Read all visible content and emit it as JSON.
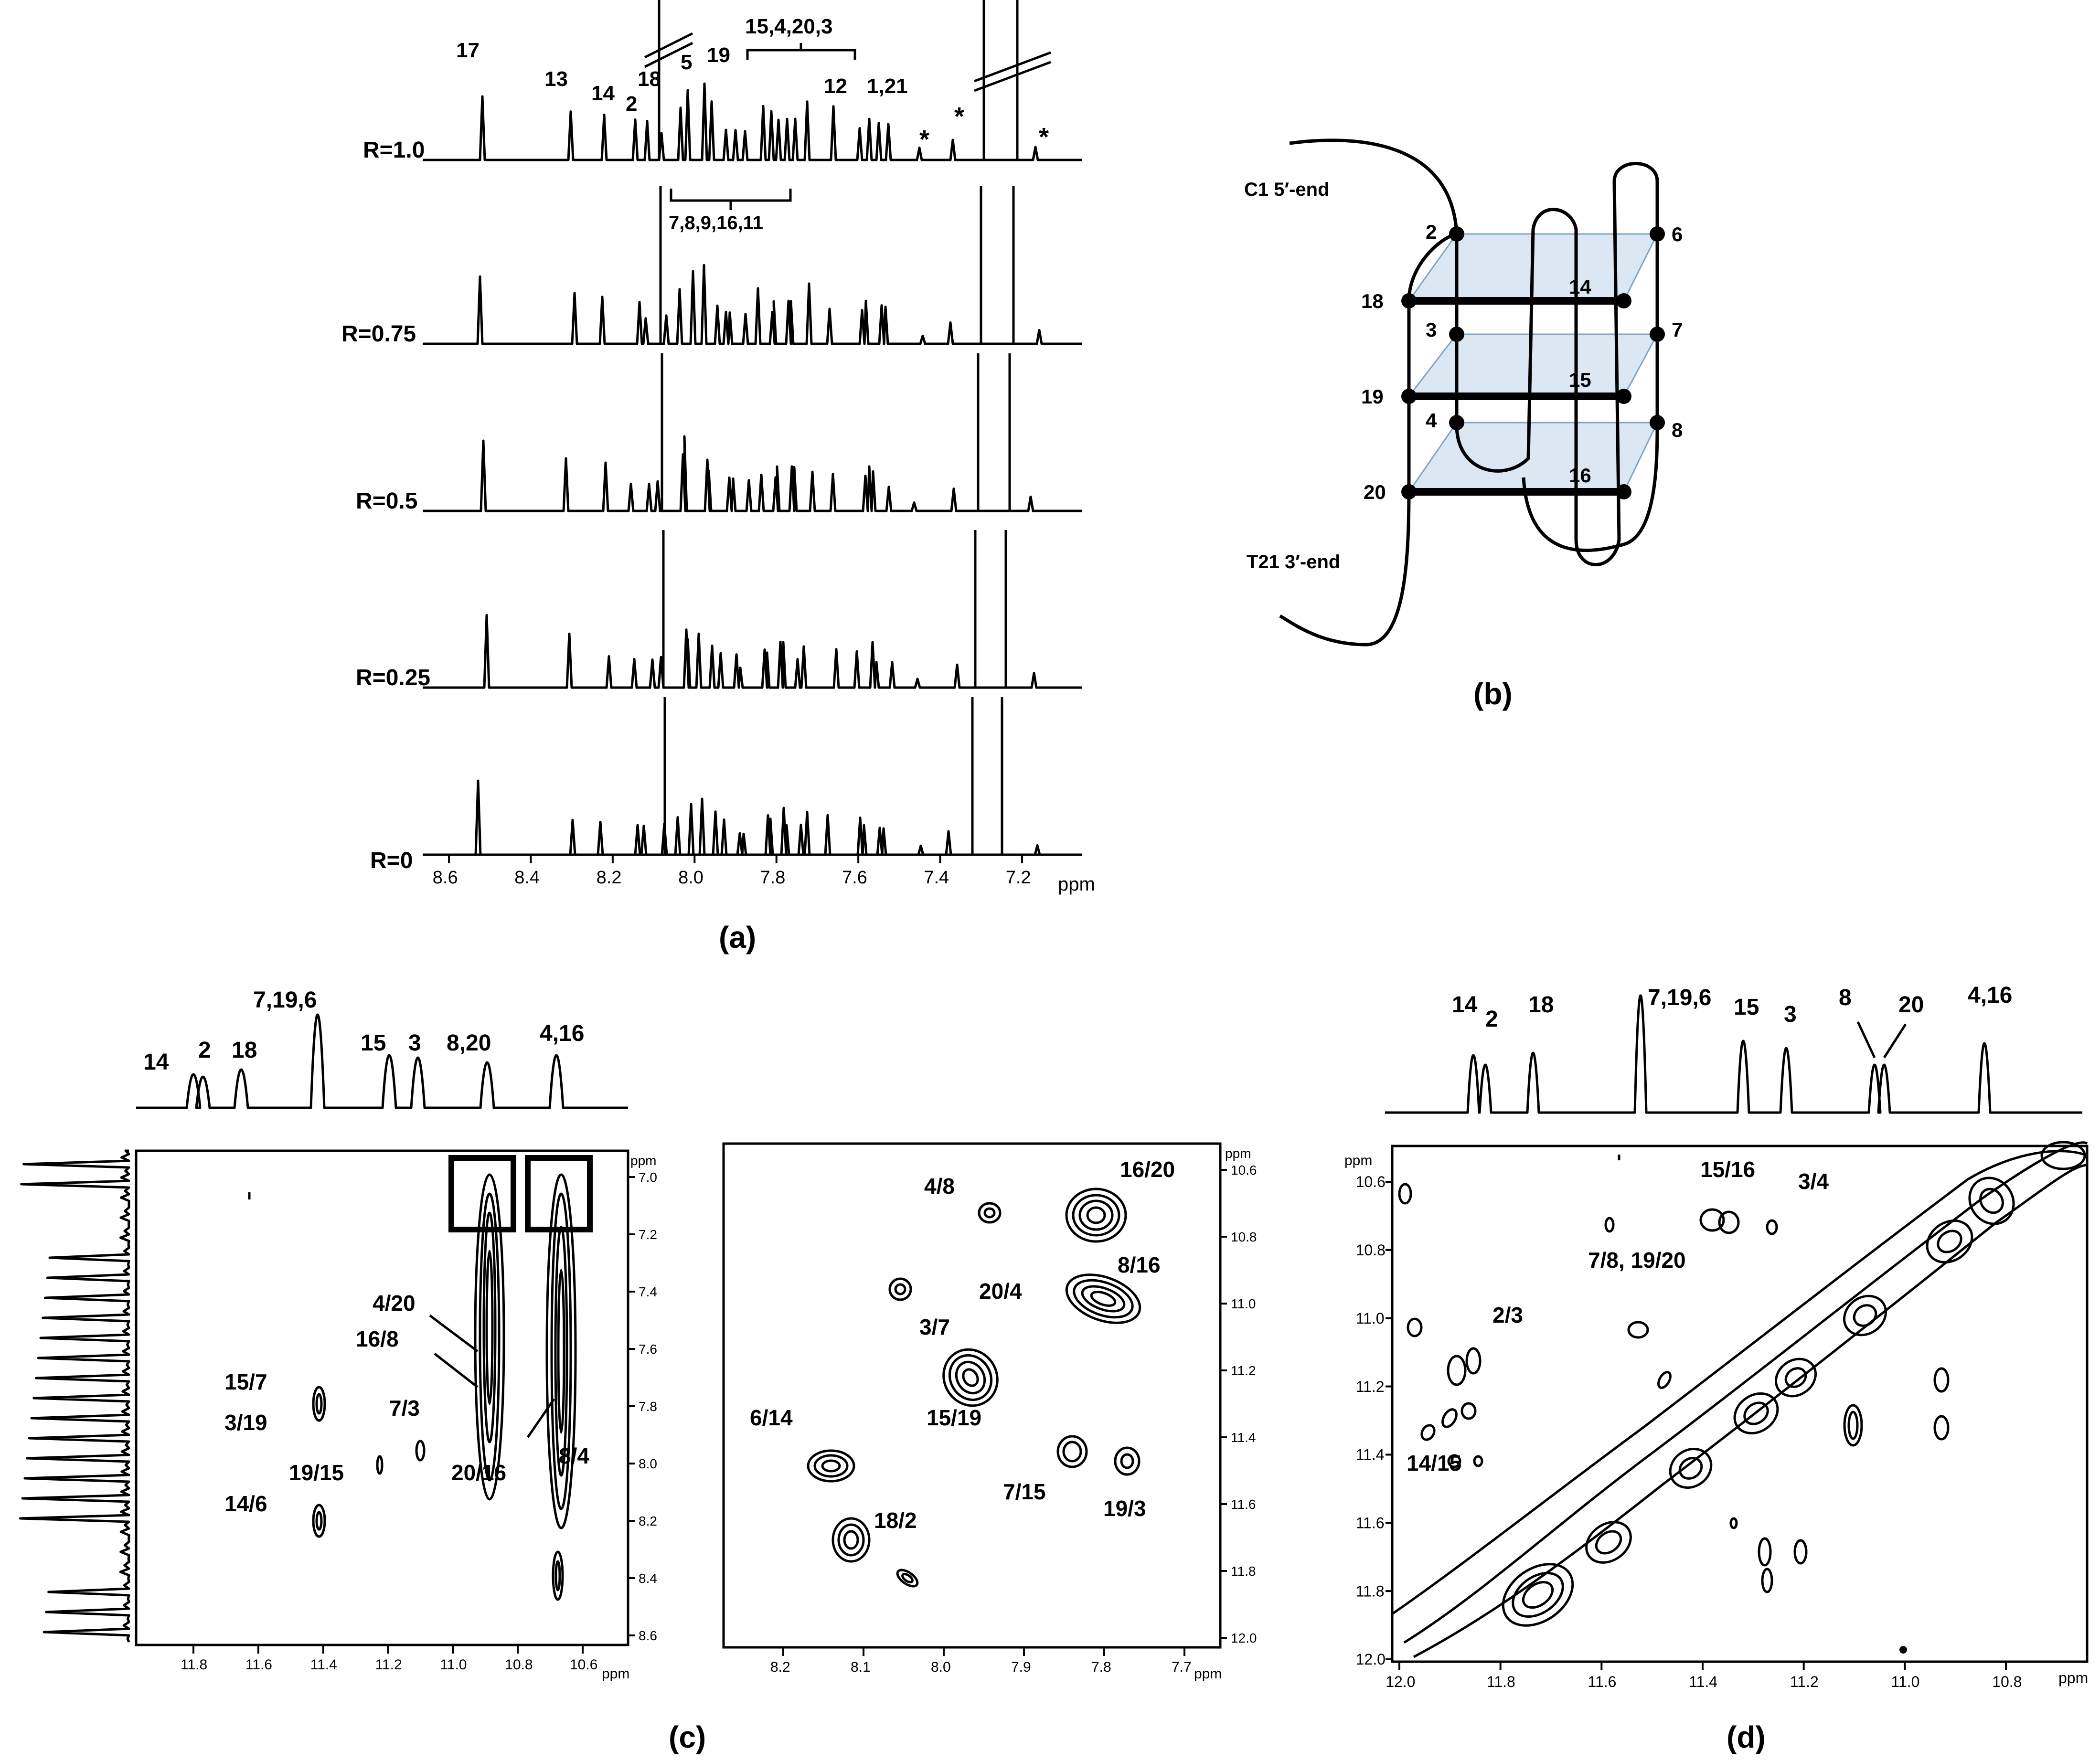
{
  "panel_a": {
    "caption": "(a)",
    "traces": [
      "R=1.0",
      "R=0.75",
      "R=0.5",
      "R=0.25",
      "R=0"
    ],
    "axis_ticks": [
      "8.6",
      "8.4",
      "8.2",
      "8.0",
      "7.8",
      "7.6",
      "7.4",
      "7.2"
    ],
    "axis_unit": "ppm",
    "peak_labels": [
      "17",
      "13",
      "14",
      "18",
      "2",
      "5",
      "19",
      "15,4,20,3",
      "12",
      "1,21",
      "*",
      "*",
      "*"
    ],
    "group_label": "7,8,9,16,11"
  },
  "panel_b": {
    "caption": "(b)",
    "five_end": "C1 5′-end",
    "three_end": "T21 3′-end",
    "node_labels": [
      "2",
      "6",
      "18",
      "14",
      "3",
      "7",
      "19",
      "15",
      "4",
      "8",
      "20",
      "16"
    ],
    "plane_color": "#dbe7f3"
  },
  "panel_c": {
    "caption": "(c)",
    "top_labels": [
      "14",
      "2",
      "18",
      "7,19,6",
      "15",
      "3",
      "8,20",
      "4,16"
    ],
    "left": {
      "right_ticks": [
        "7.0",
        "7.2",
        "7.4",
        "7.6",
        "7.8",
        "8.0",
        "8.2",
        "8.4",
        "8.6"
      ],
      "bottom_ticks": [
        "11.8",
        "11.6",
        "11.4",
        "11.2",
        "11.0",
        "10.8",
        "10.6"
      ],
      "unit": "ppm",
      "cross_labels": [
        "4/20",
        "16/8",
        "15/7",
        "3/19",
        "7/3",
        "19/15",
        "20/16",
        "8/4",
        "14/6"
      ]
    },
    "right": {
      "right_ticks": [
        "10.6",
        "10.8",
        "11.0",
        "11.2",
        "11.4",
        "11.6",
        "11.8",
        "12.0"
      ],
      "bottom_ticks": [
        "8.2",
        "8.1",
        "8.0",
        "7.9",
        "7.8",
        "7.7"
      ],
      "unit": "ppm",
      "cross_labels": [
        "4/8",
        "16/20",
        "8/16",
        "20/4",
        "3/7",
        "15/19",
        "6/14",
        "7/15",
        "19/3",
        "18/2"
      ]
    }
  },
  "panel_d": {
    "caption": "(d)",
    "top_labels": [
      "14",
      "2",
      "18",
      "7,19,6",
      "15",
      "3",
      "8",
      "20",
      "4,16"
    ],
    "left_ticks": [
      "10.6",
      "10.8",
      "11.0",
      "11.2",
      "11.4",
      "11.6",
      "11.8",
      "12.0"
    ],
    "bottom_ticks": [
      "12.0",
      "11.8",
      "11.6",
      "11.4",
      "11.2",
      "11.0",
      "10.8"
    ],
    "unit": "ppm",
    "cross_labels": [
      "15/16",
      "3/4",
      "7/8, 19/20",
      "2/3",
      "14/15"
    ]
  }
}
